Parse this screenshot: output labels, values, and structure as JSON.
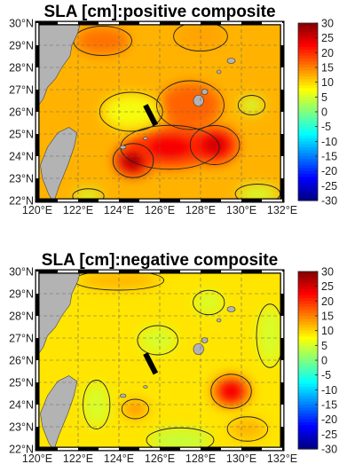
{
  "chart_data": [
    {
      "type": "heatmap",
      "title": "SLA [cm]:positive composite",
      "x_ticks": [
        "120°E",
        "122°E",
        "124°E",
        "126°E",
        "128°E",
        "130°E",
        "132°E"
      ],
      "y_ticks": [
        "22°N",
        "23°N",
        "24°N",
        "25°N",
        "26°N",
        "27°N",
        "28°N",
        "29°N",
        "30°N"
      ],
      "xlim": [
        120,
        132
      ],
      "ylim": [
        22,
        30
      ],
      "colorbar": {
        "range": [
          -30,
          30
        ],
        "ticks": [
          "30",
          "25",
          "20",
          "15",
          "10",
          "5",
          "0",
          "-5",
          "-10",
          "-15",
          "-20",
          "-25",
          "-30"
        ]
      },
      "background_sla": 12,
      "features": [
        {
          "lon": 124.7,
          "lat": 23.8,
          "value": 24,
          "width": 0.9,
          "height": 0.7
        },
        {
          "lon": 126.5,
          "lat": 24.4,
          "value": 20,
          "width": 2.2,
          "height": 0.9
        },
        {
          "lon": 128.7,
          "lat": 24.5,
          "value": 22,
          "width": 1.1,
          "height": 0.8
        },
        {
          "lon": 127.5,
          "lat": 26.3,
          "value": 17,
          "width": 1.5,
          "height": 1.0
        },
        {
          "lon": 123.2,
          "lat": 29.2,
          "value": 16,
          "width": 1.3,
          "height": 0.6
        },
        {
          "lon": 128.0,
          "lat": 29.4,
          "value": 13,
          "width": 1.2,
          "height": 0.6
        },
        {
          "lon": 124.6,
          "lat": 26.0,
          "value": 7,
          "width": 1.4,
          "height": 0.8
        },
        {
          "lon": 130.5,
          "lat": 26.3,
          "value": 5,
          "width": 0.6,
          "height": 0.4
        },
        {
          "lon": 122.5,
          "lat": 22.2,
          "value": 5,
          "width": 0.7,
          "height": 0.3
        },
        {
          "lon": 130.8,
          "lat": 22.3,
          "value": 5,
          "width": 1.0,
          "height": 0.4
        }
      ]
    },
    {
      "type": "heatmap",
      "title": "SLA [cm]:negative composite",
      "x_ticks": [
        "120°E",
        "122°E",
        "124°E",
        "126°E",
        "128°E",
        "130°E",
        "132°E"
      ],
      "y_ticks": [
        "22°N",
        "23°N",
        "24°N",
        "25°N",
        "26°N",
        "27°N",
        "28°N",
        "29°N",
        "30°N"
      ],
      "xlim": [
        120,
        132
      ],
      "ylim": [
        22,
        30
      ],
      "colorbar": {
        "range": [
          -30,
          30
        ],
        "ticks": [
          "30",
          "25",
          "20",
          "15",
          "10",
          "5",
          "0",
          "-5",
          "-10",
          "-15",
          "-20",
          "-25",
          "-30"
        ]
      },
      "background_sla": 9,
      "features": [
        {
          "lon": 129.5,
          "lat": 24.6,
          "value": 20,
          "width": 0.9,
          "height": 0.7
        },
        {
          "lon": 124.8,
          "lat": 23.8,
          "value": 14,
          "width": 0.6,
          "height": 0.4
        },
        {
          "lon": 128.4,
          "lat": 28.6,
          "value": 5,
          "width": 0.7,
          "height": 0.5
        },
        {
          "lon": 122.9,
          "lat": 24.0,
          "value": 5,
          "width": 0.6,
          "height": 1.0
        },
        {
          "lon": 125.9,
          "lat": 26.9,
          "value": 5,
          "width": 0.9,
          "height": 0.6
        },
        {
          "lon": 127.0,
          "lat": 22.4,
          "value": 4,
          "width": 1.5,
          "height": 0.5
        },
        {
          "lon": 131.4,
          "lat": 27.1,
          "value": 5,
          "width": 0.6,
          "height": 1.3
        },
        {
          "lon": 124.0,
          "lat": 29.6,
          "value": 12,
          "width": 2.0,
          "height": 0.4
        },
        {
          "lon": 130.3,
          "lat": 22.9,
          "value": 12,
          "width": 0.9,
          "height": 0.5
        }
      ]
    }
  ],
  "colors": {
    "land": "#b3b3b3",
    "section_line": "#000000"
  },
  "section_line": {
    "start": [
      125.3,
      26.3
    ],
    "end": [
      125.8,
      25.4
    ]
  }
}
